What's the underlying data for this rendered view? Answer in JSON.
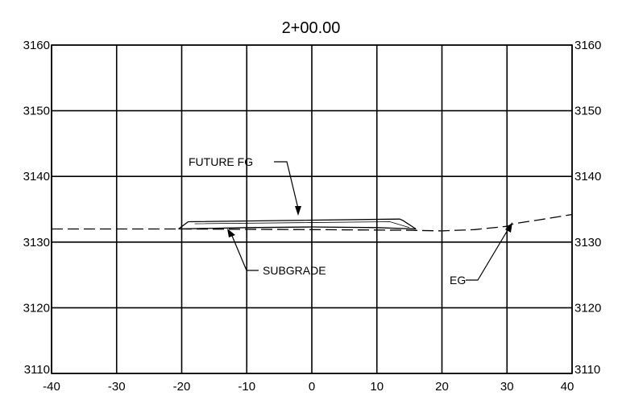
{
  "title": "2+00.00",
  "chart_data": {
    "type": "line",
    "title": "2+00.00",
    "x_ticks": [
      "-40",
      "-30",
      "-20",
      "-10",
      "0",
      "10",
      "20",
      "30",
      "40"
    ],
    "y_ticks_left": [
      "3160",
      "3150",
      "3140",
      "3130",
      "3120",
      "3110"
    ],
    "y_ticks_right": [
      "3160",
      "3150",
      "3140",
      "3130",
      "3120",
      "3110"
    ],
    "xlim": [
      -40,
      40
    ],
    "ylim": [
      3110,
      3160
    ],
    "grid": true,
    "series": [
      {
        "name": "EG",
        "style": "dashed",
        "x": [
          -40,
          -20,
          0,
          15,
          20,
          25,
          30,
          31,
          35,
          40
        ],
        "y": [
          3132.0,
          3132.0,
          3131.9,
          3131.8,
          3131.7,
          3131.9,
          3132.4,
          3132.8,
          3133.4,
          3134.2
        ]
      },
      {
        "name": "FUTURE FG",
        "style": "solid",
        "x": [
          -20.5,
          -19,
          13.5,
          14,
          16
        ],
        "y": [
          3132.0,
          3133.1,
          3133.5,
          3133.3,
          3132.0
        ]
      },
      {
        "name": "SUBGRADE",
        "style": "solid",
        "x": [
          -20.5,
          -10,
          0,
          10,
          16
        ],
        "y": [
          3132.0,
          3132.2,
          3132.3,
          3132.2,
          3132.0
        ]
      }
    ],
    "annotations": [
      {
        "text": "FUTURE FG",
        "x": -2,
        "y": 3140,
        "arrow_to": [
          -1,
          3133.4
        ]
      },
      {
        "text": "SUBGRADE",
        "x": -7,
        "y": 3126,
        "arrow_to": [
          -12.5,
          3131.8
        ]
      },
      {
        "text": "EG",
        "x": 25,
        "y": 3124,
        "arrow_to": [
          31,
          3132.8
        ]
      }
    ]
  }
}
